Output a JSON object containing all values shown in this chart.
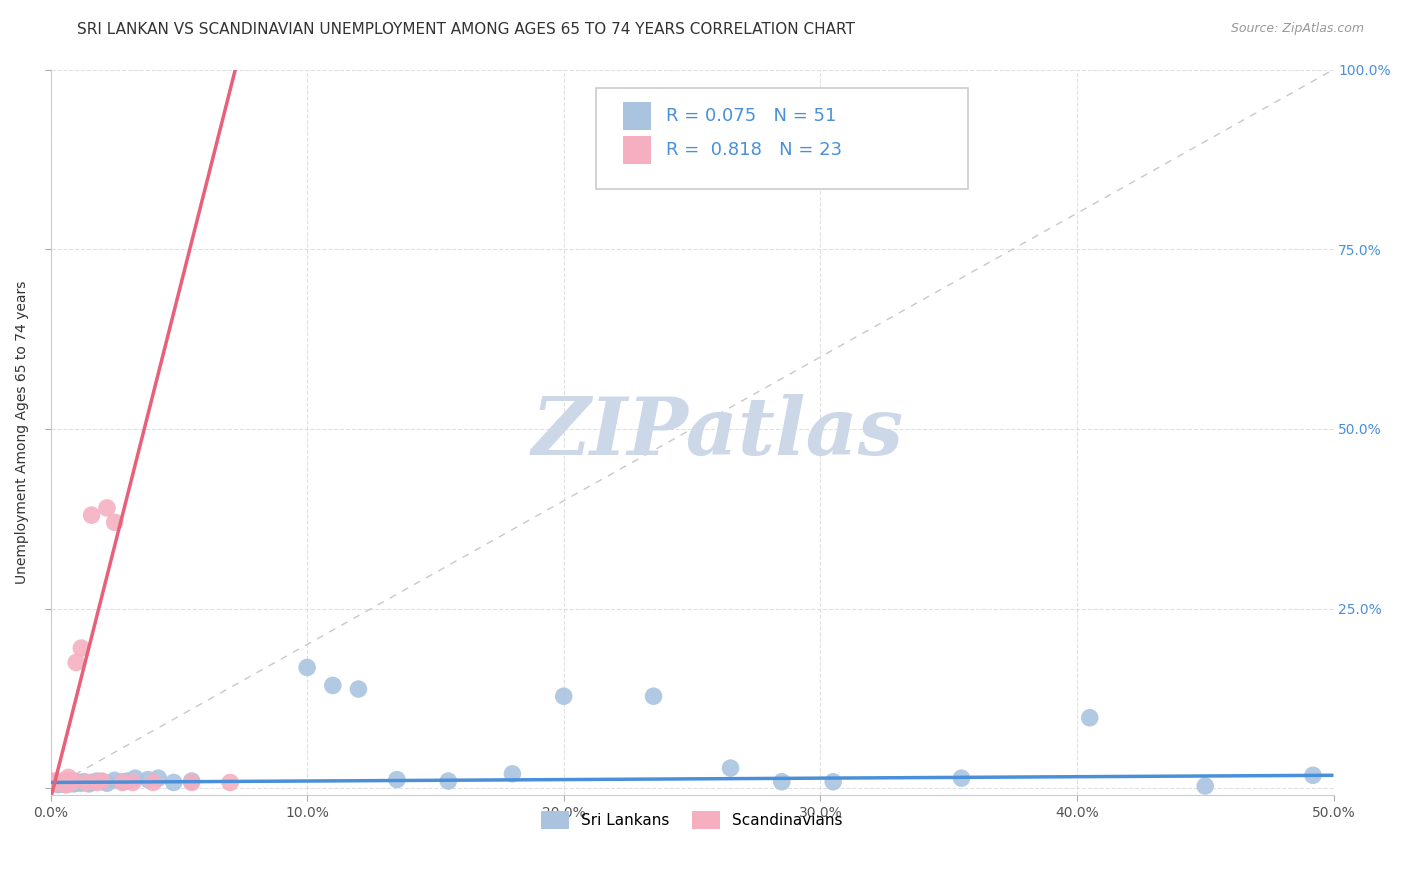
{
  "title": "SRI LANKAN VS SCANDINAVIAN UNEMPLOYMENT AMONG AGES 65 TO 74 YEARS CORRELATION CHART",
  "source": "Source: ZipAtlas.com",
  "ylabel": "Unemployment Among Ages 65 to 74 years",
  "xlim": [
    0.0,
    0.5
  ],
  "ylim": [
    -0.01,
    1.0
  ],
  "xticks": [
    0.0,
    0.1,
    0.2,
    0.3,
    0.4,
    0.5
  ],
  "yticks": [
    0.0,
    0.25,
    0.5,
    0.75,
    1.0
  ],
  "sri_lankans_R": 0.075,
  "sri_lankans_N": 51,
  "scandinavians_R": 0.818,
  "scandinavians_N": 23,
  "sri_lankans_color": "#aac4e0",
  "scandinavians_color": "#f5afc0",
  "sri_lankans_trend_color": "#4a90d9",
  "scandinavians_trend_color": "#e8607a",
  "legend_label_sri": "Sri Lankans",
  "legend_label_scan": "Scandinavians",
  "background_color": "#ffffff",
  "grid_color": "#cccccc",
  "watermark_color": "#ccd8e8",
  "title_fontsize": 11,
  "axis_label_fontsize": 10,
  "tick_fontsize": 10,
  "right_tick_color": "#4a90d9",
  "sri_lankans_x": [
    0.0,
    0.001,
    0.002,
    0.002,
    0.003,
    0.003,
    0.004,
    0.004,
    0.005,
    0.005,
    0.006,
    0.006,
    0.007,
    0.007,
    0.008,
    0.008,
    0.009,
    0.009,
    0.01,
    0.01,
    0.011,
    0.012,
    0.013,
    0.015,
    0.016,
    0.018,
    0.02,
    0.022,
    0.025,
    0.028,
    0.03,
    0.033,
    0.038,
    0.042,
    0.048,
    0.055,
    0.1,
    0.11,
    0.12,
    0.135,
    0.155,
    0.18,
    0.2,
    0.235,
    0.265,
    0.285,
    0.305,
    0.355,
    0.405,
    0.45,
    0.492
  ],
  "sri_lankans_y": [
    0.008,
    0.007,
    0.009,
    0.006,
    0.008,
    0.005,
    0.009,
    0.006,
    0.01,
    0.007,
    0.008,
    0.005,
    0.009,
    0.006,
    0.01,
    0.007,
    0.008,
    0.006,
    0.009,
    0.007,
    0.008,
    0.007,
    0.009,
    0.006,
    0.008,
    0.01,
    0.009,
    0.007,
    0.011,
    0.009,
    0.01,
    0.014,
    0.012,
    0.014,
    0.008,
    0.01,
    0.168,
    0.143,
    0.138,
    0.012,
    0.01,
    0.02,
    0.128,
    0.128,
    0.028,
    0.009,
    0.009,
    0.014,
    0.098,
    0.003,
    0.018
  ],
  "scandinavians_x": [
    0.0,
    0.001,
    0.002,
    0.003,
    0.004,
    0.005,
    0.006,
    0.007,
    0.008,
    0.009,
    0.01,
    0.012,
    0.014,
    0.016,
    0.018,
    0.02,
    0.022,
    0.025,
    0.028,
    0.032,
    0.04,
    0.055,
    0.07
  ],
  "scandinavians_y": [
    0.01,
    0.008,
    0.01,
    0.007,
    0.008,
    0.01,
    0.005,
    0.015,
    0.008,
    0.01,
    0.175,
    0.195,
    0.008,
    0.38,
    0.008,
    0.01,
    0.39,
    0.37,
    0.008,
    0.008,
    0.008,
    0.008,
    0.008
  ],
  "scan_trend_x0": 0.0,
  "scan_trend_y0": -0.015,
  "scan_trend_x1": 0.072,
  "scan_trend_y1": 1.0,
  "sri_trend_x0": 0.0,
  "sri_trend_y0": 0.008,
  "sri_trend_x1": 0.5,
  "sri_trend_y1": 0.018
}
